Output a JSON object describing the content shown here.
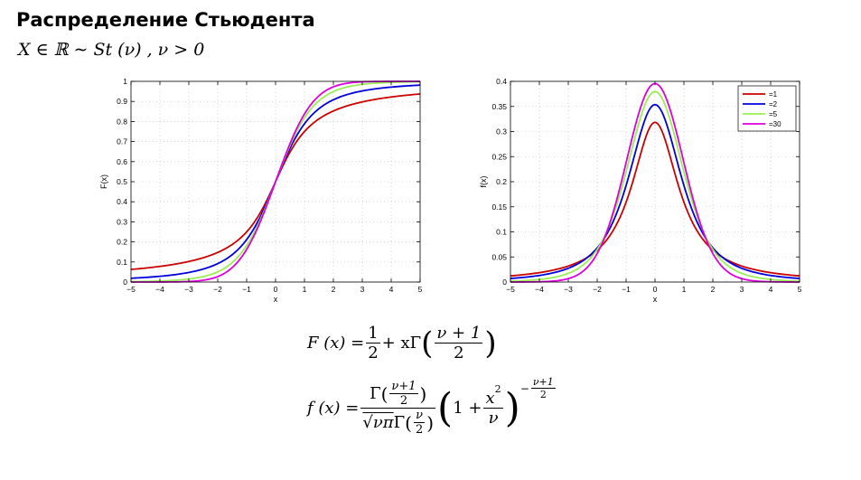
{
  "page": {
    "title": "Распределение Стьюдента",
    "subtitle": "X ∈ ℝ ∼ St (ν) , ν > 0"
  },
  "colors": {
    "red": "#cc0000",
    "blue": "#0000dd",
    "green": "#99ee55",
    "magenta": "#dd00dd"
  },
  "chart_data": [
    {
      "type": "line",
      "function": "cdf",
      "xlabel": "x",
      "ylabel": "F(x)",
      "xlim": [
        -5,
        5
      ],
      "ylim": [
        0,
        1
      ],
      "xticks": [
        "−5",
        "−4",
        "−3",
        "−2",
        "−1",
        "0",
        "1",
        "2",
        "3",
        "4",
        "5"
      ],
      "yticks": [
        "0",
        "0.1",
        "0.2",
        "0.3",
        "0.4",
        "0.5",
        "0.6",
        "0.7",
        "0.8",
        "0.9",
        "1"
      ],
      "grid": true,
      "x": [
        -5,
        -4,
        -3,
        -2,
        -1,
        0,
        1,
        2,
        3,
        4,
        5
      ],
      "series": [
        {
          "color": "#cc0000",
          "values": [
            0.063,
            0.078,
            0.102,
            0.148,
            0.25,
            0.5,
            0.75,
            0.852,
            0.898,
            0.922,
            0.937
          ]
        },
        {
          "color": "#0000dd",
          "values": [
            0.019,
            0.029,
            0.048,
            0.092,
            0.211,
            0.5,
            0.789,
            0.908,
            0.952,
            0.971,
            0.981
          ]
        },
        {
          "color": "#99ee55",
          "values": [
            0.002,
            0.005,
            0.015,
            0.051,
            0.182,
            0.5,
            0.818,
            0.949,
            0.985,
            0.995,
            0.998
          ]
        },
        {
          "color": "#dd00dd",
          "values": [
            0.0,
            0.0,
            0.003,
            0.027,
            0.163,
            0.5,
            0.837,
            0.973,
            0.997,
            1.0,
            1.0
          ]
        }
      ]
    },
    {
      "type": "line",
      "function": "pdf",
      "xlabel": "x",
      "ylabel": "f(x)",
      "xlim": [
        -5,
        5
      ],
      "ylim": [
        0,
        0.4
      ],
      "xticks": [
        "−5",
        "−4",
        "−3",
        "−2",
        "−1",
        "0",
        "1",
        "2",
        "3",
        "4",
        "5"
      ],
      "yticks": [
        "0",
        "0.05",
        "0.1",
        "0.15",
        "0.2",
        "0.25",
        "0.3",
        "0.35",
        "0.4"
      ],
      "grid": true,
      "legend_position": "top-right",
      "x": [
        -5,
        -4,
        -3,
        -2,
        -1,
        0,
        1,
        2,
        3,
        4,
        5
      ],
      "series": [
        {
          "name": "=1",
          "nu": 1,
          "color": "#cc0000",
          "values": [
            0.012,
            0.019,
            0.032,
            0.064,
            0.159,
            0.318,
            0.159,
            0.064,
            0.032,
            0.019,
            0.012
          ]
        },
        {
          "name": "=2",
          "nu": 2,
          "color": "#0000dd",
          "values": [
            0.007,
            0.013,
            0.027,
            0.068,
            0.192,
            0.354,
            0.192,
            0.068,
            0.027,
            0.013,
            0.007
          ]
        },
        {
          "name": "=5",
          "nu": 5,
          "color": "#99ee55",
          "values": [
            0.002,
            0.005,
            0.017,
            0.065,
            0.22,
            0.38,
            0.22,
            0.065,
            0.017,
            0.005,
            0.002
          ]
        },
        {
          "name": "=30",
          "nu": 30,
          "color": "#dd00dd",
          "values": [
            0.0,
            0.001,
            0.007,
            0.058,
            0.237,
            0.396,
            0.237,
            0.058,
            0.007,
            0.001,
            0.0
          ]
        }
      ]
    }
  ],
  "formulas": {
    "cdf": {
      "lhs": "F (x) =",
      "half_num": "1",
      "half_den": "2",
      "plus_x_gamma": "+ xΓ",
      "arg_num": "ν + 1",
      "arg_den": "2"
    },
    "pdf": {
      "lhs": "f (x) =",
      "num": "Γ (ν+1 / 2)",
      "num_gamma": "Γ",
      "num_frac_num": "ν+1",
      "num_frac_den": "2",
      "den_sqrt": "√νπ",
      "den_gamma": "Γ",
      "den_frac_num": "ν",
      "den_frac_den": "2",
      "one_plus": "1 +",
      "x2_num": "x",
      "x2_sup": "2",
      "x2_den": "ν",
      "exp_minus": "−",
      "exp_num": "ν+1",
      "exp_den": "2"
    }
  }
}
